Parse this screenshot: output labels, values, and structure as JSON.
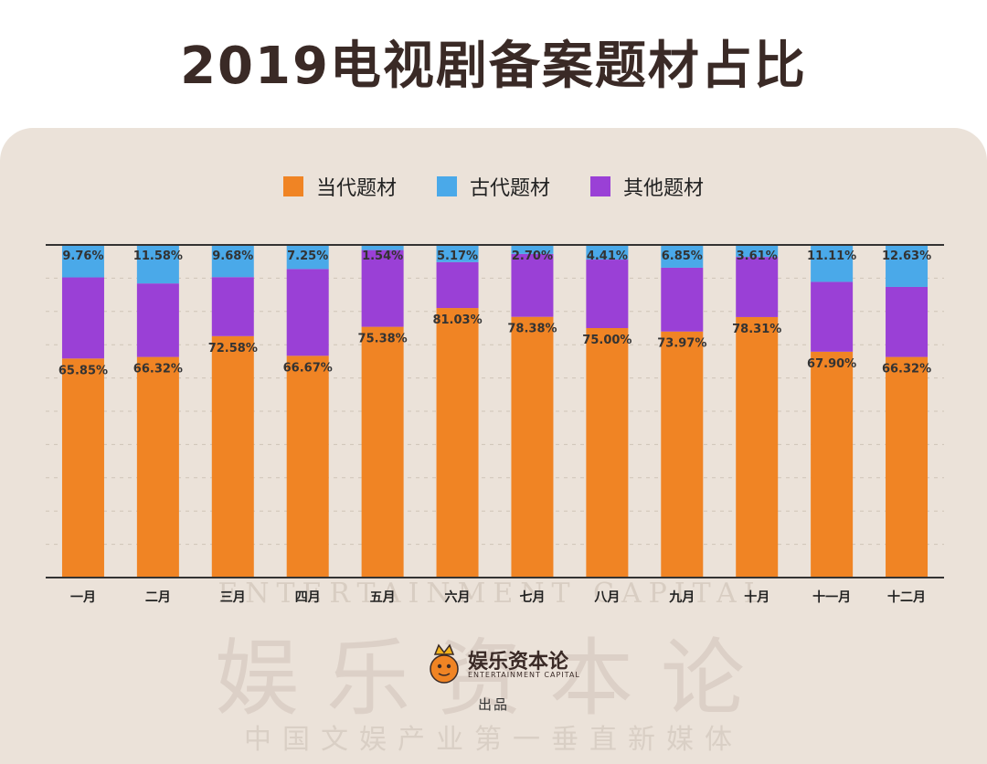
{
  "header": {
    "title": "2019电视剧备案题材占比"
  },
  "watermark": {
    "en": "ENTERTAINMENT CAPITAL",
    "cn": "娱乐资本论",
    "slogan": "中国文娱产业第一垂直新媒体"
  },
  "brand": {
    "name": "娱乐资本论",
    "sub": "ENTERTAINMENT CAPITAL",
    "byline": "出品"
  },
  "colors": {
    "modern": "#f08424",
    "ancient": "#4aa9e9",
    "other": "#9a40d6",
    "axis": "#333333"
  },
  "chart_data": {
    "type": "bar",
    "stacked": true,
    "title": "2019电视剧备案题材占比",
    "categories": [
      "一月",
      "二月",
      "三月",
      "四月",
      "五月",
      "六月",
      "七月",
      "八月",
      "九月",
      "十月",
      "十一月",
      "十二月"
    ],
    "series": [
      {
        "name": "当代题材",
        "values": [
          65.85,
          66.32,
          72.58,
          66.67,
          75.38,
          81.03,
          78.38,
          75.0,
          73.97,
          78.31,
          67.9,
          66.32
        ]
      },
      {
        "name": "其他题材",
        "values": [
          24.39,
          22.1,
          17.74,
          26.08,
          23.08,
          13.8,
          18.92,
          20.59,
          19.18,
          18.08,
          20.99,
          21.05
        ]
      },
      {
        "name": "古代题材",
        "values": [
          9.76,
          11.58,
          9.68,
          7.25,
          1.54,
          5.17,
          2.7,
          4.41,
          6.85,
          3.61,
          11.11,
          12.63
        ]
      }
    ],
    "data_labels": {
      "当代题材": [
        "65.85%",
        "66.32%",
        "72.58%",
        "66.67%",
        "75.38%",
        "81.03%",
        "78.38%",
        "75.00%",
        "73.97%",
        "78.31%",
        "67.90%",
        "66.32%"
      ],
      "古代题材": [
        "9.76%",
        "11.58%",
        "9.68%",
        "7.25%",
        "1.54%",
        "5.17%",
        "2.70%",
        "4.41%",
        "6.85%",
        "3.61%",
        "11.11%",
        "12.63%"
      ]
    },
    "legend": [
      "当代题材",
      "古代题材",
      "其他题材"
    ],
    "legend_position": "top",
    "ylim": [
      0,
      100
    ],
    "xlabel": "",
    "ylabel": "",
    "grid": true
  }
}
